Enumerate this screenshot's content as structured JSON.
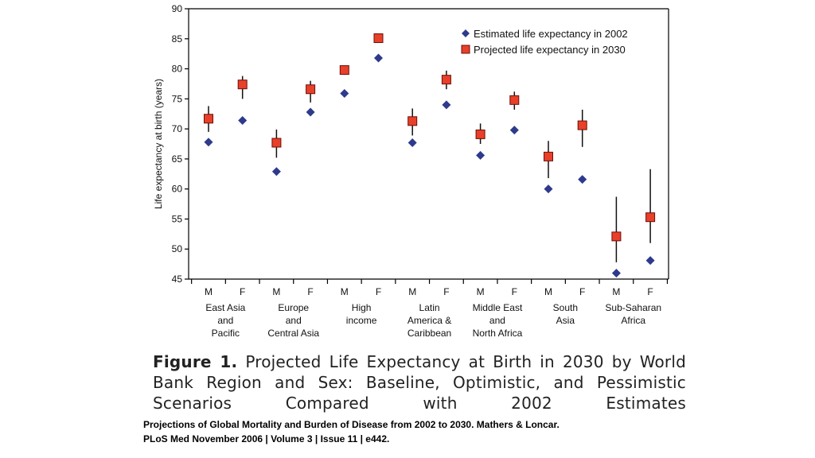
{
  "chart_data": {
    "type": "scatter",
    "ylabel": "Life expectancy at birth (years)",
    "ylim": [
      45,
      90
    ],
    "yticks": [
      45,
      50,
      55,
      60,
      65,
      70,
      75,
      80,
      85,
      90
    ],
    "categories": [
      "M",
      "F",
      "M",
      "F",
      "M",
      "F",
      "M",
      "F",
      "M",
      "F",
      "M",
      "F",
      "M",
      "F"
    ],
    "groups": [
      {
        "lines": [
          "East Asia",
          "and",
          "Pacific"
        ]
      },
      {
        "lines": [
          "Europe",
          "and",
          "Central Asia"
        ]
      },
      {
        "lines": [
          "High",
          "income"
        ]
      },
      {
        "lines": [
          "Latin",
          "America &",
          "Caribbean"
        ]
      },
      {
        "lines": [
          "Middle East",
          "and",
          "North Africa"
        ]
      },
      {
        "lines": [
          "South",
          "Asia"
        ]
      },
      {
        "lines": [
          "Sub-Saharan",
          "Africa"
        ]
      }
    ],
    "series": [
      {
        "name": "Estimated life expectancy in 2002",
        "color": "#2e3a8c",
        "marker": "diamond",
        "values": [
          67.8,
          71.4,
          62.9,
          72.8,
          75.9,
          81.8,
          67.7,
          74.0,
          65.6,
          69.8,
          60.0,
          61.6,
          46.0,
          48.1
        ]
      },
      {
        "name": "Projected life expectancy in 2030",
        "color": "#e8402a",
        "marker": "square",
        "values": [
          71.7,
          77.4,
          67.7,
          76.6,
          79.8,
          85.1,
          71.3,
          78.2,
          69.1,
          74.8,
          65.4,
          70.6,
          52.1,
          55.3
        ],
        "error_low": [
          69.5,
          75.0,
          65.2,
          74.4,
          79.0,
          84.3,
          68.9,
          76.6,
          67.5,
          73.2,
          61.8,
          67.0,
          47.8,
          51.0
        ],
        "error_high": [
          73.8,
          78.8,
          69.9,
          78.0,
          80.4,
          85.8,
          73.4,
          79.7,
          70.9,
          76.2,
          68.0,
          73.2,
          58.7,
          63.3
        ]
      }
    ],
    "legend_position": "top-right",
    "grid": false
  },
  "caption": {
    "label": "Figure 1.",
    "text": "Projected Life Expectancy at Birth in 2030 by World Bank Region and Sex: Baseline, Optimistic, and Pessimistic Scenarios Compared with 2002 Estimates"
  },
  "citation": {
    "line1": "Projections of Global Mortality and Burden of Disease from 2002 to 2030. Mathers & Loncar.",
    "line2": "PLoS Med November 2006 | Volume 3 | Issue 11 | e442."
  }
}
